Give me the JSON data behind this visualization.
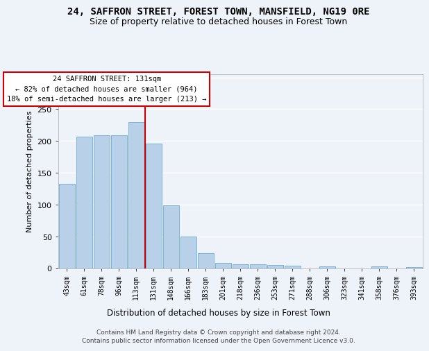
{
  "title": "24, SAFFRON STREET, FOREST TOWN, MANSFIELD, NG19 0RE",
  "subtitle": "Size of property relative to detached houses in Forest Town",
  "xlabel": "Distribution of detached houses by size in Forest Town",
  "ylabel": "Number of detached properties",
  "categories": [
    "43sqm",
    "61sqm",
    "78sqm",
    "96sqm",
    "113sqm",
    "131sqm",
    "148sqm",
    "166sqm",
    "183sqm",
    "201sqm",
    "218sqm",
    "236sqm",
    "253sqm",
    "271sqm",
    "288sqm",
    "306sqm",
    "323sqm",
    "341sqm",
    "358sqm",
    "376sqm",
    "393sqm"
  ],
  "values": [
    133,
    207,
    209,
    209,
    230,
    196,
    99,
    50,
    24,
    9,
    7,
    7,
    5,
    4,
    0,
    3,
    0,
    0,
    3,
    0,
    2
  ],
  "bar_color": "#b8d0e8",
  "bar_edge_color": "#6aaed6",
  "red_line_index": 5,
  "annotation_line1": "24 SAFFRON STREET: 131sqm",
  "annotation_line2": "← 82% of detached houses are smaller (964)",
  "annotation_line3": "18% of semi-detached houses are larger (213) →",
  "annotation_box_facecolor": "#ffffff",
  "annotation_box_edgecolor": "#cc0000",
  "red_line_color": "#cc0000",
  "ylim": [
    0,
    305
  ],
  "yticks": [
    0,
    50,
    100,
    150,
    200,
    250,
    300
  ],
  "background_color": "#eef2f9",
  "grid_color": "#ffffff",
  "footer_line1": "Contains HM Land Registry data © Crown copyright and database right 2024.",
  "footer_line2": "Contains public sector information licensed under the Open Government Licence v3.0."
}
